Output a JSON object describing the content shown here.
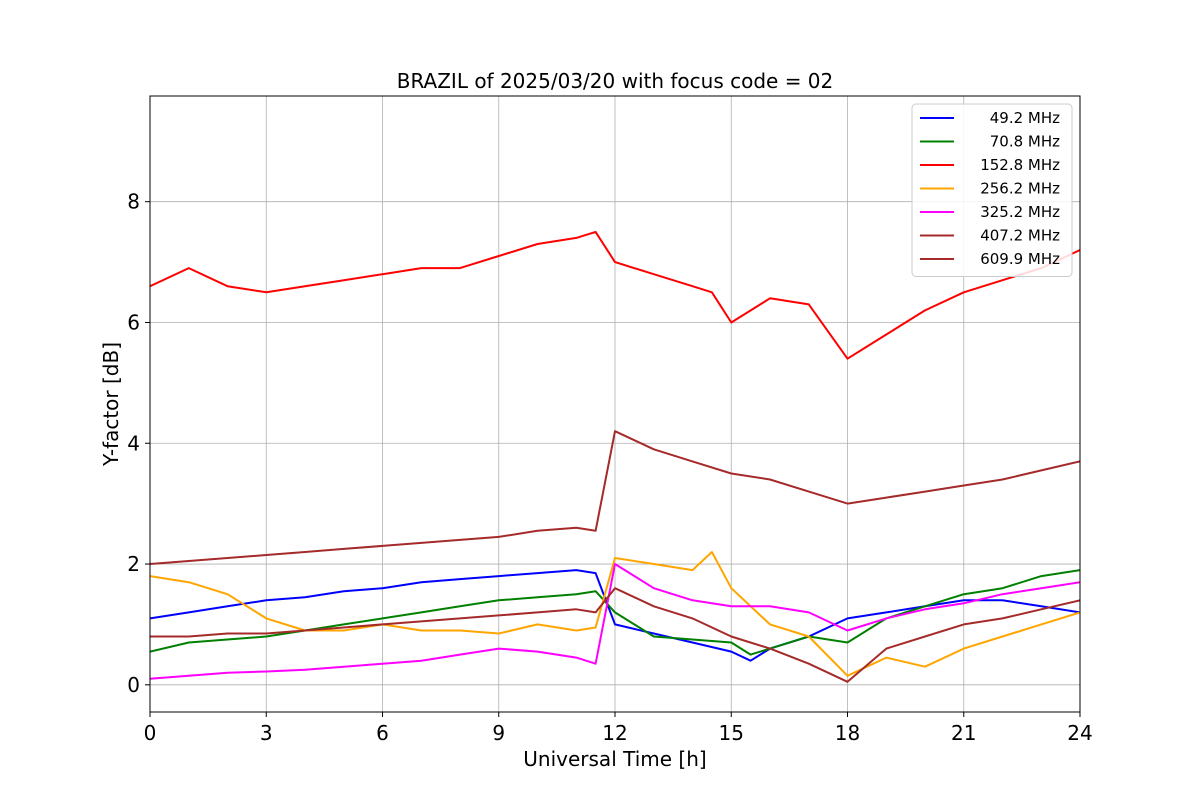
{
  "chart_data": {
    "type": "line",
    "title": "BRAZIL of 2025/03/20 with focus code = 02",
    "xlabel": "Universal Time [h]",
    "ylabel": "Y-factor [dB]",
    "xlim": [
      0,
      24
    ],
    "ylim": [
      -0.45,
      9.75
    ],
    "xticks": [
      0,
      3,
      6,
      9,
      12,
      15,
      18,
      21,
      24
    ],
    "yticks": [
      0,
      2,
      4,
      6,
      8
    ],
    "grid": true,
    "legend_position": "top-right",
    "series": [
      {
        "name": "49.2 MHz",
        "color": "#0000ff",
        "x": [
          0,
          1,
          2,
          3,
          4,
          5,
          6,
          7,
          8,
          9,
          10,
          11,
          11.5,
          12,
          13,
          14,
          15,
          15.5,
          16,
          17,
          18,
          19,
          20,
          21,
          22,
          23,
          24
        ],
        "y": [
          1.1,
          1.2,
          1.3,
          1.4,
          1.45,
          1.55,
          1.6,
          1.7,
          1.75,
          1.8,
          1.85,
          1.9,
          1.85,
          1.0,
          0.85,
          0.7,
          0.55,
          0.4,
          0.6,
          0.8,
          1.1,
          1.2,
          1.3,
          1.4,
          1.4,
          1.3,
          1.2
        ]
      },
      {
        "name": "70.8 MHz",
        "color": "#008000",
        "x": [
          0,
          1,
          2,
          3,
          4,
          5,
          6,
          7,
          8,
          9,
          10,
          11,
          11.5,
          12,
          13,
          14,
          15,
          15.5,
          16,
          17,
          18,
          19,
          20,
          21,
          22,
          23,
          24
        ],
        "y": [
          0.55,
          0.7,
          0.75,
          0.8,
          0.9,
          1.0,
          1.1,
          1.2,
          1.3,
          1.4,
          1.45,
          1.5,
          1.55,
          1.2,
          0.8,
          0.75,
          0.7,
          0.5,
          0.6,
          0.8,
          0.7,
          1.1,
          1.3,
          1.5,
          1.6,
          1.8,
          1.9
        ]
      },
      {
        "name": "152.8 MHz",
        "color": "#ff0000",
        "x": [
          0,
          1,
          2,
          3,
          4,
          5,
          6,
          7,
          8,
          9,
          10,
          11,
          11.5,
          12,
          13,
          14,
          14.5,
          15,
          16,
          17,
          18,
          19,
          20,
          21,
          22,
          23,
          24
        ],
        "y": [
          6.6,
          6.9,
          6.6,
          6.5,
          6.6,
          6.7,
          6.8,
          6.9,
          6.9,
          7.1,
          7.3,
          7.4,
          7.5,
          7.0,
          6.8,
          6.6,
          6.5,
          6.0,
          6.4,
          6.3,
          5.4,
          5.8,
          6.2,
          6.5,
          6.7,
          6.9,
          7.2
        ]
      },
      {
        "name": "256.2 MHz",
        "color": "#ffa500",
        "x": [
          0,
          1,
          2,
          3,
          4,
          5,
          6,
          7,
          8,
          9,
          10,
          11,
          11.5,
          12,
          13,
          14,
          14.5,
          15,
          16,
          17,
          18,
          19,
          20,
          21,
          22,
          23,
          24
        ],
        "y": [
          1.8,
          1.7,
          1.5,
          1.1,
          0.9,
          0.9,
          1.0,
          0.9,
          0.9,
          0.85,
          1.0,
          0.9,
          0.95,
          2.1,
          2.0,
          1.9,
          2.2,
          1.6,
          1.0,
          0.8,
          0.15,
          0.45,
          0.3,
          0.6,
          0.8,
          1.0,
          1.2
        ]
      },
      {
        "name": "325.2 MHz",
        "color": "#ff00ff",
        "x": [
          0,
          1,
          2,
          3,
          4,
          5,
          6,
          7,
          8,
          9,
          10,
          11,
          11.5,
          12,
          13,
          14,
          15,
          16,
          17,
          18,
          19,
          20,
          21,
          22,
          23,
          24
        ],
        "y": [
          0.1,
          0.15,
          0.2,
          0.22,
          0.25,
          0.3,
          0.35,
          0.4,
          0.5,
          0.6,
          0.55,
          0.45,
          0.35,
          2.0,
          1.6,
          1.4,
          1.3,
          1.3,
          1.2,
          0.9,
          1.1,
          1.25,
          1.35,
          1.5,
          1.6,
          1.7
        ]
      },
      {
        "name": "407.2 MHz",
        "color": "#a52a2a",
        "x": [
          0,
          1,
          2,
          3,
          4,
          5,
          6,
          7,
          8,
          9,
          10,
          11,
          11.5,
          12,
          13,
          14,
          15,
          16,
          17,
          18,
          19,
          20,
          21,
          22,
          23,
          24
        ],
        "y": [
          2.0,
          2.05,
          2.1,
          2.15,
          2.2,
          2.25,
          2.3,
          2.35,
          2.4,
          2.45,
          2.55,
          2.6,
          2.55,
          4.2,
          3.9,
          3.7,
          3.5,
          3.4,
          3.2,
          3.0,
          3.1,
          3.2,
          3.3,
          3.4,
          3.55,
          3.7
        ]
      },
      {
        "name": "609.9 MHz",
        "color": "#a52a2a",
        "x": [
          0,
          1,
          2,
          3,
          4,
          5,
          6,
          7,
          8,
          9,
          10,
          11,
          11.5,
          12,
          13,
          14,
          15,
          16,
          17,
          18,
          19,
          20,
          21,
          22,
          23,
          24
        ],
        "y": [
          0.8,
          0.8,
          0.85,
          0.85,
          0.9,
          0.95,
          1.0,
          1.05,
          1.1,
          1.15,
          1.2,
          1.25,
          1.2,
          1.6,
          1.3,
          1.1,
          0.8,
          0.6,
          0.35,
          0.05,
          0.6,
          0.8,
          1.0,
          1.1,
          1.25,
          1.4
        ]
      }
    ]
  }
}
